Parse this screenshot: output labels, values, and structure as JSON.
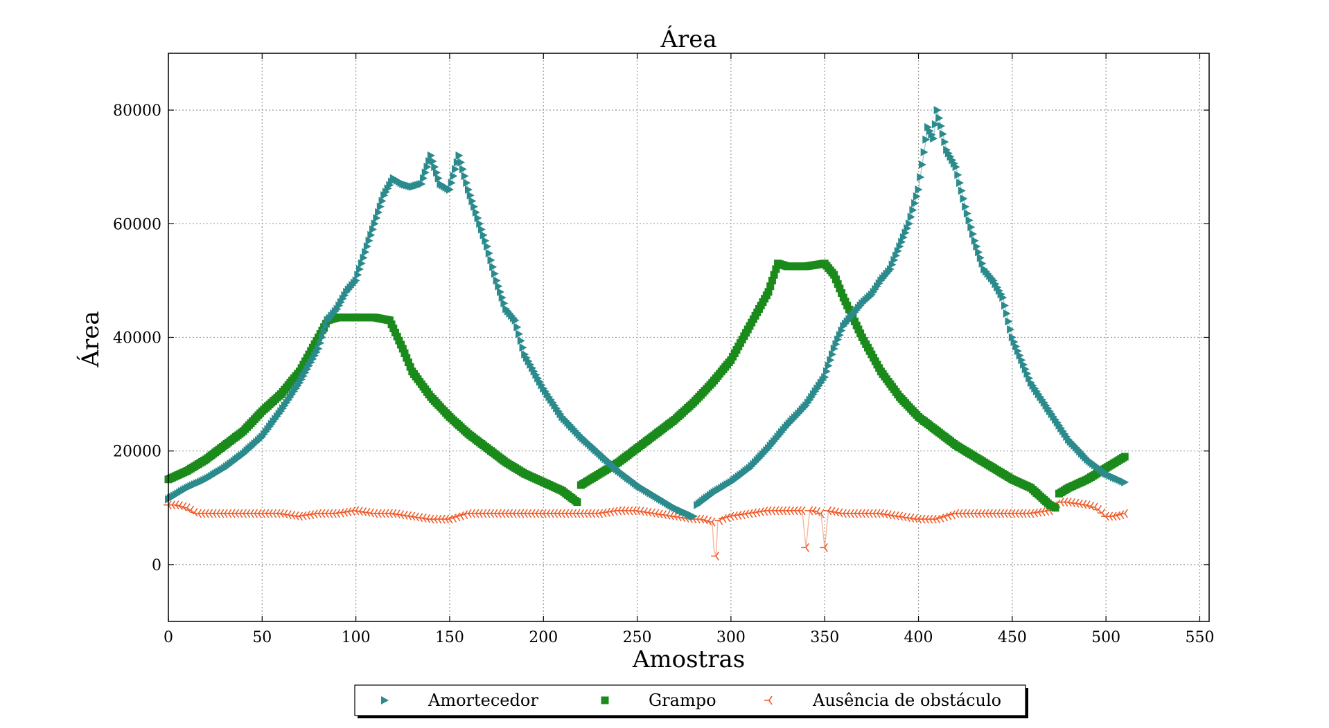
{
  "chart_data": {
    "type": "line",
    "title": "Área",
    "xlabel": "Amostras",
    "ylabel": "Área",
    "xlim": [
      0,
      555
    ],
    "ylim": [
      -10000,
      90000
    ],
    "xticks": [
      0,
      50,
      100,
      150,
      200,
      250,
      300,
      350,
      400,
      450,
      500,
      550
    ],
    "yticks": [
      0,
      20000,
      40000,
      60000,
      80000
    ],
    "grid": true,
    "legend_position": "bottom-center",
    "series": [
      {
        "name": "Amortecedor",
        "color": "#2a8a8c",
        "marker": "triangle-right",
        "segments": [
          {
            "x": [
              0,
              10,
              20,
              30,
              40,
              50,
              60,
              70,
              80,
              85,
              90,
              95,
              100,
              105,
              110,
              115,
              120,
              125,
              130,
              135,
              140,
              145,
              150,
              155,
              160,
              165,
              170,
              175,
              180,
              185,
              190,
              200,
              210,
              220,
              230,
              240,
              250,
              260,
              270,
              280
            ],
            "y": [
              11500,
              13500,
              15000,
              17000,
              19500,
              22500,
              27000,
              32000,
              38000,
              43000,
              45000,
              48000,
              50000,
              55000,
              60000,
              65000,
              68000,
              67000,
              66500,
              67000,
              72000,
              67000,
              66000,
              72000,
              66000,
              61000,
              56000,
              50000,
              45000,
              43000,
              37000,
              31000,
              26000,
              22500,
              19500,
              16500,
              14000,
              12000,
              10000,
              8500
            ]
          },
          {
            "x": [
              282,
              290,
              300,
              310,
              320,
              330,
              340,
              350,
              355,
              360,
              365,
              370,
              375,
              380,
              385,
              390,
              395,
              400,
              405,
              408,
              410,
              415,
              420,
              425,
              430,
              435,
              440,
              445,
              450,
              460,
              470,
              480,
              490,
              500,
              510
            ],
            "y": [
              10500,
              12500,
              14500,
              17000,
              20500,
              24500,
              28000,
              33000,
              38000,
              42000,
              44000,
              46000,
              47500,
              50000,
              52000,
              56000,
              60000,
              66000,
              77000,
              75000,
              80000,
              73000,
              70000,
              63000,
              57000,
              52000,
              50000,
              47000,
              40000,
              32000,
              27000,
              22000,
              18500,
              16000,
              14500
            ]
          }
        ]
      },
      {
        "name": "Grampo",
        "color": "#1a8a1a",
        "marker": "square",
        "segments": [
          {
            "x": [
              0,
              10,
              20,
              30,
              40,
              50,
              60,
              70,
              75,
              80,
              85,
              90,
              100,
              110,
              118,
              125,
              130,
              140,
              150,
              160,
              170,
              180,
              190,
              200,
              210,
              218
            ],
            "y": [
              15000,
              16500,
              18500,
              21000,
              23500,
              27000,
              30000,
              34000,
              37000,
              40000,
              43000,
              43500,
              43500,
              43500,
              43000,
              38000,
              34000,
              29500,
              26000,
              23000,
              20500,
              18000,
              16000,
              14500,
              13000,
              11000
            ]
          },
          {
            "x": [
              220,
              230,
              240,
              250,
              260,
              270,
              280,
              290,
              300,
              310,
              320,
              325,
              330,
              340,
              350,
              355,
              360,
              370,
              380,
              390,
              400,
              410,
              420,
              430,
              440,
              450,
              460,
              465,
              470,
              473
            ],
            "y": [
              14000,
              16000,
              18000,
              20500,
              23000,
              25500,
              28500,
              32000,
              36000,
              42000,
              48000,
              53000,
              52500,
              52500,
              53000,
              51000,
              47000,
              40000,
              34000,
              29500,
              26000,
              23500,
              21000,
              19000,
              17000,
              15000,
              13500,
              12000,
              10500,
              10000
            ]
          },
          {
            "x": [
              475,
              480,
              490,
              500,
              510
            ],
            "y": [
              12500,
              13500,
              15000,
              17000,
              19000
            ]
          }
        ]
      },
      {
        "name": "Ausência de obstáculo",
        "color": "#f05a28",
        "marker": "tri-left",
        "segments": [
          {
            "x": [
              0,
              5,
              10,
              15,
              20,
              30,
              40,
              50,
              60,
              70,
              80,
              90,
              100,
              110,
              120,
              130,
              140,
              150,
              160,
              170,
              180,
              190,
              200,
              210,
              220,
              230,
              240,
              250,
              260,
              270,
              280,
              285,
              290,
              291,
              292,
              293,
              295,
              300,
              310,
              320,
              330,
              338,
              340,
              342,
              345,
              348,
              350,
              352,
              360,
              370,
              380,
              390,
              400,
              410,
              420,
              430,
              440,
              450,
              460,
              470,
              475,
              480,
              490,
              495,
              500,
              505,
              510
            ],
            "y": [
              10500,
              10500,
              10000,
              9000,
              9000,
              9000,
              9000,
              9000,
              9000,
              8500,
              9000,
              9000,
              9500,
              9000,
              9000,
              8500,
              8000,
              8000,
              9000,
              9000,
              9000,
              9000,
              9000,
              9000,
              9000,
              9000,
              9500,
              9500,
              9000,
              8500,
              8000,
              8000,
              7500,
              2500,
              1500,
              7500,
              8000,
              8500,
              9000,
              9500,
              9500,
              9500,
              3000,
              9500,
              9500,
              9000,
              3000,
              9500,
              9000,
              9000,
              9000,
              8500,
              8000,
              8000,
              9000,
              9000,
              9000,
              9000,
              9000,
              9500,
              11000,
              11000,
              10500,
              10000,
              8500,
              8500,
              9000
            ]
          }
        ]
      }
    ]
  }
}
